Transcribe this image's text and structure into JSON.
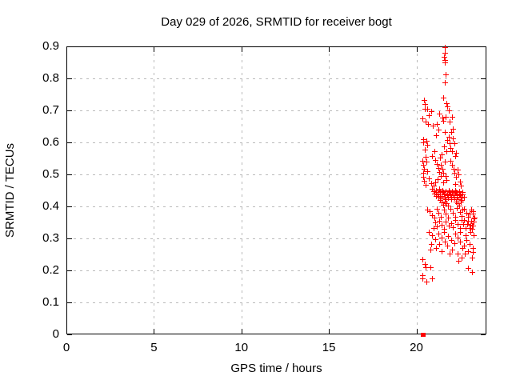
{
  "chart_data": {
    "type": "scatter",
    "title": "Day 029 of 2026, SRMTID for receiver bogt",
    "xlabel": "GPS time / hours",
    "ylabel": "SRMTID / TECUs",
    "xlim": [
      0,
      24
    ],
    "ylim": [
      0,
      0.9
    ],
    "grid": true,
    "legend": "none",
    "marker": "plus",
    "marker_color": "#ff0000",
    "x_ticks": [
      {
        "v": 0,
        "label": "0"
      },
      {
        "v": 5,
        "label": "5"
      },
      {
        "v": 10,
        "label": "10"
      },
      {
        "v": 15,
        "label": "15"
      },
      {
        "v": 20,
        "label": "20"
      }
    ],
    "y_ticks": [
      {
        "v": 0,
        "label": "0"
      },
      {
        "v": 0.1,
        "label": "0.1"
      },
      {
        "v": 0.2,
        "label": "0.2"
      },
      {
        "v": 0.3,
        "label": "0.3"
      },
      {
        "v": 0.4,
        "label": "0.4"
      },
      {
        "v": 0.5,
        "label": "0.5"
      },
      {
        "v": 0.6,
        "label": "0.6"
      },
      {
        "v": 0.7,
        "label": "0.7"
      },
      {
        "v": 0.8,
        "label": "0.8"
      },
      {
        "v": 0.9,
        "label": "0.9"
      }
    ],
    "series": [
      {
        "name": "SRMTID",
        "points": [
          [
            21.6,
            0.897
          ],
          [
            21.62,
            0.879
          ],
          [
            21.59,
            0.868
          ],
          [
            21.63,
            0.858
          ],
          [
            21.61,
            0.85
          ],
          [
            21.67,
            0.812
          ],
          [
            21.6,
            0.787
          ],
          [
            21.54,
            0.739
          ],
          [
            20.44,
            0.732
          ],
          [
            20.46,
            0.719
          ],
          [
            20.49,
            0.706
          ],
          [
            20.63,
            0.705
          ],
          [
            20.85,
            0.698
          ],
          [
            21.71,
            0.723
          ],
          [
            21.78,
            0.712
          ],
          [
            21.83,
            0.699
          ],
          [
            21.31,
            0.689
          ],
          [
            20.71,
            0.686
          ],
          [
            21.49,
            0.677
          ],
          [
            20.34,
            0.676
          ],
          [
            21.66,
            0.681
          ],
          [
            22.03,
            0.68
          ],
          [
            20.51,
            0.665
          ],
          [
            20.66,
            0.658
          ],
          [
            21.16,
            0.658
          ],
          [
            20.94,
            0.653
          ],
          [
            21.54,
            0.668
          ],
          [
            21.88,
            0.664
          ],
          [
            21.24,
            0.639
          ],
          [
            22.1,
            0.643
          ],
          [
            21.14,
            0.623
          ],
          [
            21.64,
            0.633
          ],
          [
            21.98,
            0.633
          ],
          [
            21.86,
            0.618
          ],
          [
            21.77,
            0.608
          ],
          [
            20.41,
            0.611
          ],
          [
            20.55,
            0.606
          ],
          [
            20.6,
            0.593
          ],
          [
            20.37,
            0.599
          ],
          [
            21.91,
            0.598
          ],
          [
            22.08,
            0.613
          ],
          [
            22.15,
            0.598
          ],
          [
            21.94,
            0.583
          ],
          [
            22.04,
            0.573
          ],
          [
            21.59,
            0.588
          ],
          [
            21.71,
            0.573
          ],
          [
            20.89,
            0.558
          ],
          [
            21.04,
            0.573
          ],
          [
            22.28,
            0.568
          ],
          [
            22.2,
            0.558
          ],
          [
            21.36,
            0.553
          ],
          [
            21.44,
            0.563
          ],
          [
            20.46,
            0.578
          ],
          [
            20.52,
            0.555
          ],
          [
            20.35,
            0.543
          ],
          [
            20.4,
            0.53
          ],
          [
            20.43,
            0.518
          ],
          [
            20.41,
            0.505
          ],
          [
            20.37,
            0.493
          ],
          [
            20.45,
            0.48
          ],
          [
            20.51,
            0.468
          ],
          [
            20.57,
            0.54
          ],
          [
            20.63,
            0.511
          ],
          [
            20.71,
            0.488
          ],
          [
            20.85,
            0.473
          ],
          [
            20.96,
            0.465
          ],
          [
            21.09,
            0.545
          ],
          [
            21.17,
            0.533
          ],
          [
            21.25,
            0.52
          ],
          [
            21.32,
            0.508
          ],
          [
            21.4,
            0.53
          ],
          [
            21.47,
            0.518
          ],
          [
            21.54,
            0.505
          ],
          [
            21.61,
            0.54
          ],
          [
            21.38,
            0.495
          ],
          [
            21.2,
            0.485
          ],
          [
            21.06,
            0.475
          ],
          [
            21.51,
            0.475
          ],
          [
            21.67,
            0.495
          ],
          [
            21.73,
            0.483
          ],
          [
            21.95,
            0.543
          ],
          [
            22.03,
            0.53
          ],
          [
            22.11,
            0.518
          ],
          [
            22.19,
            0.505
          ],
          [
            22.27,
            0.493
          ],
          [
            22.34,
            0.515
          ],
          [
            22.41,
            0.5
          ],
          [
            22.23,
            0.47
          ],
          [
            22.48,
            0.478
          ],
          [
            22.55,
            0.466
          ],
          [
            20.91,
            0.454
          ],
          [
            20.99,
            0.447
          ],
          [
            21.04,
            0.44
          ],
          [
            21.11,
            0.433
          ],
          [
            21.13,
            0.451
          ],
          [
            21.19,
            0.444
          ],
          [
            21.21,
            0.437
          ],
          [
            21.27,
            0.43
          ],
          [
            21.29,
            0.454
          ],
          [
            21.33,
            0.447
          ],
          [
            21.37,
            0.44
          ],
          [
            21.43,
            0.433
          ],
          [
            21.45,
            0.426
          ],
          [
            21.49,
            0.451
          ],
          [
            21.53,
            0.444
          ],
          [
            21.57,
            0.437
          ],
          [
            21.63,
            0.43
          ],
          [
            21.65,
            0.423
          ],
          [
            21.69,
            0.448
          ],
          [
            21.75,
            0.441
          ],
          [
            21.77,
            0.434
          ],
          [
            21.81,
            0.427
          ],
          [
            21.87,
            0.451
          ],
          [
            21.89,
            0.444
          ],
          [
            21.93,
            0.437
          ],
          [
            21.99,
            0.43
          ],
          [
            22.01,
            0.423
          ],
          [
            22.05,
            0.448
          ],
          [
            22.09,
            0.441
          ],
          [
            22.15,
            0.434
          ],
          [
            22.17,
            0.427
          ],
          [
            22.21,
            0.451
          ],
          [
            22.25,
            0.444
          ],
          [
            22.31,
            0.437
          ],
          [
            22.33,
            0.43
          ],
          [
            22.37,
            0.423
          ],
          [
            22.43,
            0.448
          ],
          [
            22.45,
            0.441
          ],
          [
            22.49,
            0.434
          ],
          [
            22.53,
            0.427
          ],
          [
            22.59,
            0.42
          ],
          [
            22.61,
            0.444
          ],
          [
            22.65,
            0.437
          ],
          [
            22.71,
            0.43
          ],
          [
            21.34,
            0.419
          ],
          [
            21.46,
            0.412
          ],
          [
            21.52,
            0.405
          ],
          [
            21.64,
            0.416
          ],
          [
            21.72,
            0.409
          ],
          [
            21.79,
            0.402
          ],
          [
            22.26,
            0.416
          ],
          [
            22.35,
            0.409
          ],
          [
            22.44,
            0.402
          ],
          [
            22.52,
            0.415
          ],
          [
            20.61,
            0.391
          ],
          [
            20.76,
            0.384
          ],
          [
            20.87,
            0.372
          ],
          [
            21.01,
            0.365
          ],
          [
            21.16,
            0.393
          ],
          [
            21.27,
            0.38
          ],
          [
            21.41,
            0.368
          ],
          [
            21.56,
            0.39
          ],
          [
            21.67,
            0.377
          ],
          [
            21.82,
            0.365
          ],
          [
            21.93,
            0.392
          ],
          [
            22.06,
            0.38
          ],
          [
            22.21,
            0.367
          ],
          [
            22.32,
            0.395
          ],
          [
            22.47,
            0.382
          ],
          [
            22.58,
            0.37
          ],
          [
            22.73,
            0.392
          ],
          [
            22.84,
            0.38
          ],
          [
            22.97,
            0.367
          ],
          [
            23.12,
            0.39
          ],
          [
            23.23,
            0.377
          ],
          [
            23.3,
            0.365
          ],
          [
            22.56,
            0.357
          ],
          [
            22.67,
            0.345
          ],
          [
            22.82,
            0.332
          ],
          [
            22.93,
            0.355
          ],
          [
            23.08,
            0.342
          ],
          [
            23.19,
            0.33
          ],
          [
            23.26,
            0.352
          ],
          [
            23.17,
            0.34
          ],
          [
            21.06,
            0.35
          ],
          [
            21.17,
            0.337
          ],
          [
            21.32,
            0.355
          ],
          [
            21.43,
            0.342
          ],
          [
            21.58,
            0.33
          ],
          [
            21.69,
            0.352
          ],
          [
            21.84,
            0.34
          ],
          [
            21.97,
            0.347
          ],
          [
            22.08,
            0.335
          ],
          [
            22.23,
            0.357
          ],
          [
            22.36,
            0.345
          ],
          [
            22.47,
            0.332
          ],
          [
            23.21,
            0.385
          ],
          [
            23.28,
            0.363
          ],
          [
            23.24,
            0.341
          ],
          [
            22.63,
            0.39
          ],
          [
            22.74,
            0.357
          ],
          [
            22.89,
            0.345
          ],
          [
            23.02,
            0.332
          ],
          [
            23.13,
            0.355
          ],
          [
            20.96,
            0.332
          ],
          [
            23.06,
            0.377
          ],
          [
            20.71,
            0.321
          ],
          [
            20.91,
            0.309
          ],
          [
            21.07,
            0.297
          ],
          [
            21.27,
            0.315
          ],
          [
            21.43,
            0.303
          ],
          [
            21.63,
            0.29
          ],
          [
            21.79,
            0.308
          ],
          [
            21.99,
            0.296
          ],
          [
            22.15,
            0.284
          ],
          [
            22.35,
            0.302
          ],
          [
            22.51,
            0.29
          ],
          [
            22.71,
            0.277
          ],
          [
            22.87,
            0.295
          ],
          [
            23.05,
            0.283
          ],
          [
            23.23,
            0.271
          ],
          [
            23.28,
            0.309
          ],
          [
            20.84,
            0.283
          ],
          [
            21.14,
            0.271
          ],
          [
            21.46,
            0.259
          ],
          [
            21.74,
            0.277
          ],
          [
            22.04,
            0.265
          ],
          [
            22.36,
            0.253
          ],
          [
            22.64,
            0.271
          ],
          [
            22.96,
            0.259
          ],
          [
            23.24,
            0.257
          ],
          [
            21.31,
            0.283
          ],
          [
            21.91,
            0.252
          ],
          [
            22.21,
            0.315
          ],
          [
            22.49,
            0.321
          ],
          [
            22.81,
            0.309
          ],
          [
            23.09,
            0.321
          ],
          [
            22.76,
            0.252
          ],
          [
            20.79,
            0.265
          ],
          [
            21.56,
            0.321
          ],
          [
            20.33,
            0.236
          ],
          [
            20.48,
            0.221
          ],
          [
            20.51,
            0.211
          ],
          [
            20.81,
            0.209
          ],
          [
            20.34,
            0.184
          ],
          [
            20.36,
            0.174
          ],
          [
            20.56,
            0.165
          ],
          [
            20.91,
            0.174
          ],
          [
            22.41,
            0.231
          ],
          [
            22.56,
            0.24
          ],
          [
            23.16,
            0.195
          ],
          [
            23.19,
            0.24
          ],
          [
            22.94,
            0.207
          ],
          [
            20.32,
            0.0
          ],
          [
            20.35,
            0.0
          ],
          [
            20.38,
            0.0
          ]
        ]
      }
    ]
  }
}
